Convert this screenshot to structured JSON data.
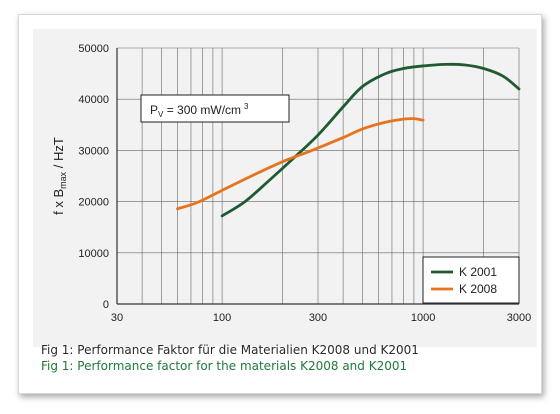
{
  "captions": {
    "german": "Fig 1:  Performance Faktor für die Materialien K2008 und K2001",
    "english": "Fig 1:  Performance factor for the materials K2008 and K2001"
  },
  "chart_data": {
    "type": "line",
    "xscale": "log",
    "xlim": [
      30,
      3000
    ],
    "ylim": [
      0,
      50000
    ],
    "x_ticks": [
      30,
      100,
      300,
      1000,
      3000
    ],
    "x_tick_labels": [
      "30",
      "100",
      "300",
      "1000",
      "3000"
    ],
    "y_ticks": [
      0,
      10000,
      20000,
      30000,
      40000,
      50000
    ],
    "y_tick_labels": [
      "0",
      "10000",
      "20000",
      "30000",
      "40000",
      "50000"
    ],
    "ylabel": "f x B",
    "ylabel_sub": "max",
    "ylabel_unit": " / HzT",
    "grid": true,
    "legend_position": "bottom-right",
    "annotation": {
      "p": "P",
      "sub": "V",
      "text": " = 300 mW/cm",
      "sup": "3"
    },
    "series": [
      {
        "name": "K 2001",
        "color": "#1f5a30",
        "points": [
          [
            100,
            17200
          ],
          [
            130,
            20000
          ],
          [
            170,
            24000
          ],
          [
            220,
            28000
          ],
          [
            300,
            33000
          ],
          [
            400,
            38500
          ],
          [
            500,
            42500
          ],
          [
            650,
            45000
          ],
          [
            800,
            46000
          ],
          [
            1000,
            46500
          ],
          [
            1300,
            46800
          ],
          [
            1600,
            46700
          ],
          [
            2000,
            46000
          ],
          [
            2500,
            44500
          ],
          [
            3000,
            42000
          ]
        ]
      },
      {
        "name": "K 2008",
        "color": "#e8731f",
        "points": [
          [
            60,
            18600
          ],
          [
            75,
            19800
          ],
          [
            100,
            22200
          ],
          [
            140,
            25000
          ],
          [
            200,
            27800
          ],
          [
            280,
            30000
          ],
          [
            400,
            32500
          ],
          [
            500,
            34200
          ],
          [
            650,
            35500
          ],
          [
            800,
            36100
          ],
          [
            900,
            36200
          ],
          [
            1000,
            35900
          ]
        ]
      }
    ],
    "colors": {
      "axis": "#333333",
      "grid": "#666666",
      "panel_bg": "#f2f2f2",
      "legend_bg": "#ffffff"
    }
  }
}
